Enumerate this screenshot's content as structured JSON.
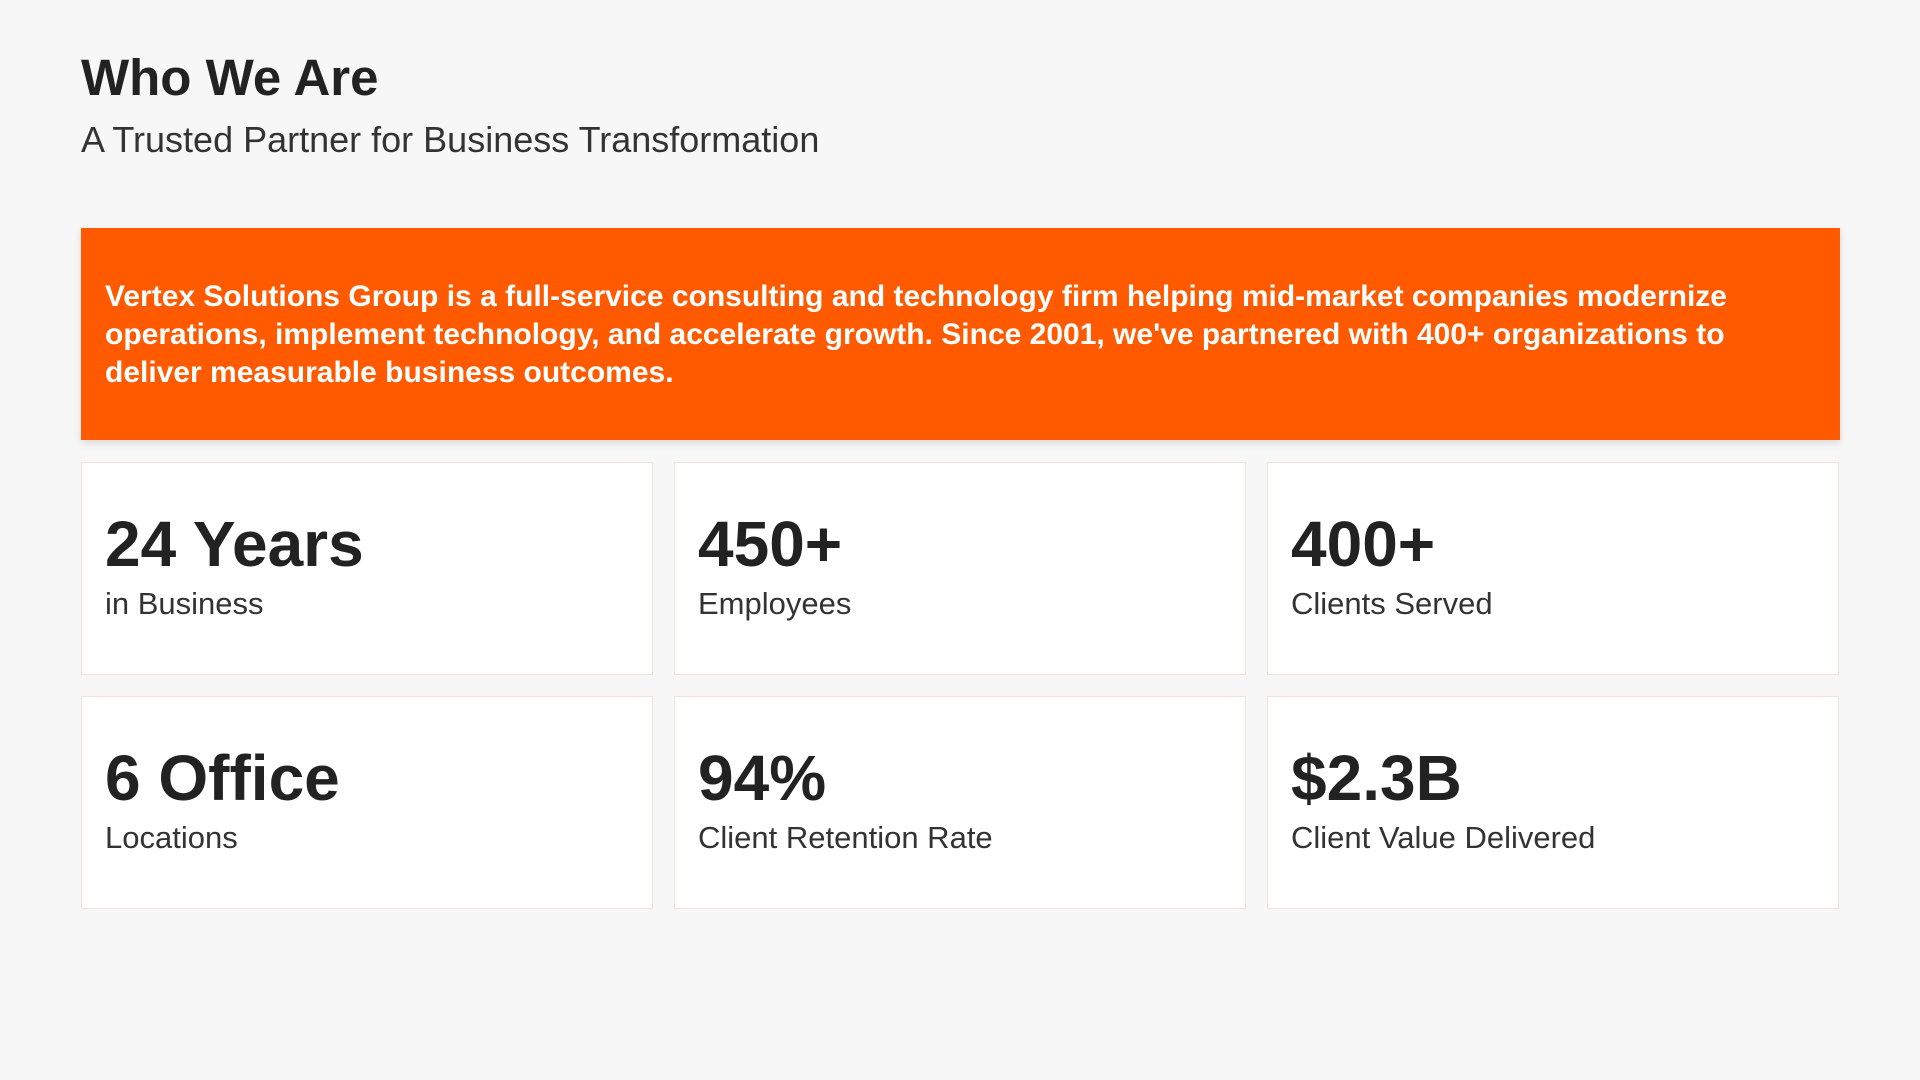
{
  "header": {
    "title": "Who We Are",
    "subtitle": "A Trusted Partner for Business Transformation"
  },
  "banner": {
    "text": "Vertex Solutions Group is a full-service consulting and technology firm helping mid-market companies modernize operations, implement technology, and accelerate growth. Since 2001, we've partnered with 400+ organizations to deliver measurable business outcomes."
  },
  "stats": [
    {
      "value": "24 Years",
      "label": "in Business"
    },
    {
      "value": "450+",
      "label": "Employees"
    },
    {
      "value": "400+",
      "label": "Clients Served"
    },
    {
      "value": "6 Office",
      "label": "Locations"
    },
    {
      "value": "94%",
      "label": "Client Retention Rate"
    },
    {
      "value": "$2.3B",
      "label": "Client Value Delivered"
    }
  ],
  "colors": {
    "accent": "#ff5a00",
    "background": "#f7f7f7",
    "card": "#ffffff",
    "text": "#222222"
  }
}
